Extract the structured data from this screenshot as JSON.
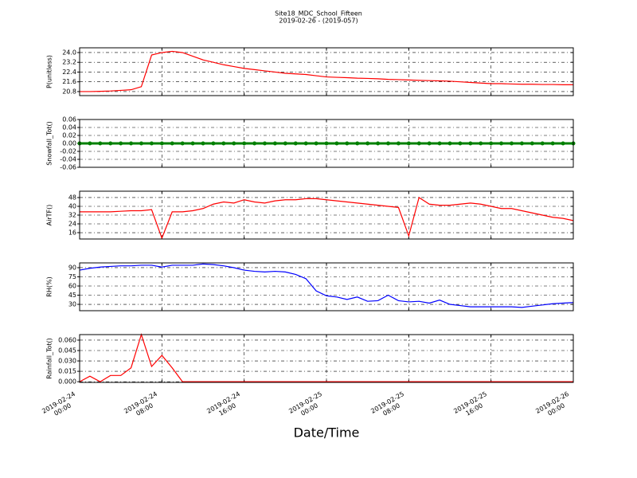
{
  "title": "Site18_MDC_School_Fifteen",
  "subtitle": "2019-02-26 - (2019-057)",
  "chart_data": [
    {
      "type": "line",
      "ylabel": "P(unitless)",
      "grid": true,
      "color": "#ff0000",
      "xlim": [
        "2019-02-24 00:00",
        "2019-02-26 00:00"
      ],
      "ylim": [
        20.47,
        24.39
      ],
      "yticks": [
        {
          "value": 20.8,
          "label": "20.8"
        },
        21.6,
        22.4,
        23.2,
        {
          "value": 24,
          "label": "24.0"
        }
      ],
      "x": [
        "2019-02-24 00:00",
        "2019-02-24 01:00",
        "2019-02-24 02:00",
        "2019-02-24 03:00",
        "2019-02-24 04:00",
        "2019-02-24 05:00",
        "2019-02-24 06:00",
        "2019-02-24 07:00",
        "2019-02-24 08:00",
        "2019-02-24 09:00",
        "2019-02-24 10:00",
        "2019-02-24 11:00",
        "2019-02-24 12:00",
        "2019-02-24 13:00",
        "2019-02-24 14:00",
        "2019-02-24 15:00",
        "2019-02-24 16:00",
        "2019-02-24 17:00",
        "2019-02-24 18:00",
        "2019-02-24 19:00",
        "2019-02-24 20:00",
        "2019-02-24 21:00",
        "2019-02-24 22:00",
        "2019-02-24 23:00",
        "2019-02-25 00:00",
        "2019-02-25 01:00",
        "2019-02-25 02:00",
        "2019-02-25 03:00",
        "2019-02-25 04:00",
        "2019-02-25 05:00",
        "2019-02-25 06:00",
        "2019-02-25 07:00",
        "2019-02-25 08:00",
        "2019-02-25 09:00",
        "2019-02-25 10:00",
        "2019-02-25 11:00",
        "2019-02-25 12:00",
        "2019-02-25 13:00",
        "2019-02-25 14:00",
        "2019-02-25 15:00",
        "2019-02-25 16:00",
        "2019-02-25 17:00",
        "2019-02-25 18:00",
        "2019-02-25 19:00",
        "2019-02-25 20:00",
        "2019-02-25 21:00",
        "2019-02-25 22:00",
        "2019-02-25 23:00",
        "2019-02-26 00:00"
      ],
      "values": [
        20.8,
        20.8,
        20.82,
        20.85,
        20.9,
        20.95,
        21.2,
        23.8,
        24.0,
        24.1,
        24.0,
        23.7,
        23.4,
        23.2,
        23.0,
        22.85,
        22.7,
        22.6,
        22.5,
        22.4,
        22.3,
        22.25,
        22.2,
        22.1,
        22.0,
        21.97,
        21.94,
        21.9,
        21.88,
        21.85,
        21.8,
        21.78,
        21.75,
        21.72,
        21.7,
        21.68,
        21.65,
        21.6,
        21.55,
        21.5,
        21.45,
        21.45,
        21.42,
        21.4,
        21.4,
        21.38,
        21.38,
        21.36,
        21.36
      ]
    },
    {
      "type": "line",
      "ylabel": "Snowfall_Tot()",
      "grid": true,
      "color": "#008000",
      "marker": true,
      "xlim": [
        "2019-02-24 00:00",
        "2019-02-26 00:00"
      ],
      "ylim": [
        -0.06,
        0.06
      ],
      "yticks": [
        -0.06,
        -0.04,
        -0.02,
        {
          "value": 0,
          "label": "0.00"
        },
        0.02,
        0.04,
        0.06
      ],
      "x": [
        "2019-02-24 00:00",
        "2019-02-24 01:00",
        "2019-02-24 02:00",
        "2019-02-24 03:00",
        "2019-02-24 04:00",
        "2019-02-24 05:00",
        "2019-02-24 06:00",
        "2019-02-24 07:00",
        "2019-02-24 08:00",
        "2019-02-24 09:00",
        "2019-02-24 10:00",
        "2019-02-24 11:00",
        "2019-02-24 12:00",
        "2019-02-24 13:00",
        "2019-02-24 14:00",
        "2019-02-24 15:00",
        "2019-02-24 16:00",
        "2019-02-24 17:00",
        "2019-02-24 18:00",
        "2019-02-24 19:00",
        "2019-02-24 20:00",
        "2019-02-24 21:00",
        "2019-02-24 22:00",
        "2019-02-24 23:00",
        "2019-02-25 00:00",
        "2019-02-25 01:00",
        "2019-02-25 02:00",
        "2019-02-25 03:00",
        "2019-02-25 04:00",
        "2019-02-25 05:00",
        "2019-02-25 06:00",
        "2019-02-25 07:00",
        "2019-02-25 08:00",
        "2019-02-25 09:00",
        "2019-02-25 10:00",
        "2019-02-25 11:00",
        "2019-02-25 12:00",
        "2019-02-25 13:00",
        "2019-02-25 14:00",
        "2019-02-25 15:00",
        "2019-02-25 16:00",
        "2019-02-25 17:00",
        "2019-02-25 18:00",
        "2019-02-25 19:00",
        "2019-02-25 20:00",
        "2019-02-25 21:00",
        "2019-02-25 22:00",
        "2019-02-25 23:00",
        "2019-02-26 00:00"
      ],
      "values": [
        0,
        0,
        0,
        0,
        0,
        0,
        0,
        0,
        0,
        0,
        0,
        0,
        0,
        0,
        0,
        0,
        0,
        0,
        0,
        0,
        0,
        0,
        0,
        0,
        0,
        0,
        0,
        0,
        0,
        0,
        0,
        0,
        0,
        0,
        0,
        0,
        0,
        0,
        0,
        0,
        0,
        0,
        0,
        0,
        0,
        0,
        0,
        0,
        0
      ]
    },
    {
      "type": "line",
      "ylabel": "AirTF()",
      "grid": true,
      "color": "#ff0000",
      "xlim": [
        "2019-02-24 00:00",
        "2019-02-26 00:00"
      ],
      "ylim": [
        10.2,
        53.8
      ],
      "yticks": [
        16,
        24,
        32,
        40,
        48
      ],
      "x": [
        "2019-02-24 00:00",
        "2019-02-24 01:00",
        "2019-02-24 02:00",
        "2019-02-24 03:00",
        "2019-02-24 04:00",
        "2019-02-24 05:00",
        "2019-02-24 06:00",
        "2019-02-24 07:00",
        "2019-02-24 08:00",
        "2019-02-24 09:00",
        "2019-02-24 10:00",
        "2019-02-24 11:00",
        "2019-02-24 12:00",
        "2019-02-24 13:00",
        "2019-02-24 14:00",
        "2019-02-24 15:00",
        "2019-02-24 16:00",
        "2019-02-24 17:00",
        "2019-02-24 18:00",
        "2019-02-24 19:00",
        "2019-02-24 20:00",
        "2019-02-24 21:00",
        "2019-02-24 22:00",
        "2019-02-24 23:00",
        "2019-02-25 00:00",
        "2019-02-25 01:00",
        "2019-02-25 02:00",
        "2019-02-25 03:00",
        "2019-02-25 04:00",
        "2019-02-25 05:00",
        "2019-02-25 06:00",
        "2019-02-25 07:00",
        "2019-02-25 08:00",
        "2019-02-25 09:00",
        "2019-02-25 10:00",
        "2019-02-25 11:00",
        "2019-02-25 12:00",
        "2019-02-25 13:00",
        "2019-02-25 14:00",
        "2019-02-25 15:00",
        "2019-02-25 16:00",
        "2019-02-25 17:00",
        "2019-02-25 18:00",
        "2019-02-25 19:00",
        "2019-02-25 20:00",
        "2019-02-25 21:00",
        "2019-02-25 22:00",
        "2019-02-25 23:00",
        "2019-02-26 00:00"
      ],
      "values": [
        35,
        35,
        35,
        35,
        35.5,
        36,
        36,
        37,
        11,
        35,
        35,
        36,
        38,
        42,
        44,
        43,
        46,
        44,
        43,
        45,
        46,
        46,
        47,
        47,
        46,
        45,
        44,
        43,
        42,
        41,
        40,
        39,
        13,
        48,
        42,
        41,
        41,
        42,
        43,
        42,
        40,
        38,
        38,
        36,
        34,
        32,
        30,
        29,
        27
      ]
    },
    {
      "type": "line",
      "ylabel": "RH(%)",
      "grid": true,
      "color": "#0000ff",
      "xlim": [
        "2019-02-24 00:00",
        "2019-02-26 00:00"
      ],
      "ylim": [
        19.6,
        97.8
      ],
      "yticks": [
        30,
        45,
        60,
        75,
        90
      ],
      "x": [
        "2019-02-24 00:00",
        "2019-02-24 01:00",
        "2019-02-24 02:00",
        "2019-02-24 03:00",
        "2019-02-24 04:00",
        "2019-02-24 05:00",
        "2019-02-24 06:00",
        "2019-02-24 07:00",
        "2019-02-24 08:00",
        "2019-02-24 09:00",
        "2019-02-24 10:00",
        "2019-02-24 11:00",
        "2019-02-24 12:00",
        "2019-02-24 13:00",
        "2019-02-24 14:00",
        "2019-02-24 15:00",
        "2019-02-24 16:00",
        "2019-02-24 17:00",
        "2019-02-24 18:00",
        "2019-02-24 19:00",
        "2019-02-24 20:00",
        "2019-02-24 21:00",
        "2019-02-24 22:00",
        "2019-02-24 23:00",
        "2019-02-25 00:00",
        "2019-02-25 01:00",
        "2019-02-25 02:00",
        "2019-02-25 03:00",
        "2019-02-25 04:00",
        "2019-02-25 05:00",
        "2019-02-25 06:00",
        "2019-02-25 07:00",
        "2019-02-25 08:00",
        "2019-02-25 09:00",
        "2019-02-25 10:00",
        "2019-02-25 11:00",
        "2019-02-25 12:00",
        "2019-02-25 13:00",
        "2019-02-25 14:00",
        "2019-02-25 15:00",
        "2019-02-25 16:00",
        "2019-02-25 17:00",
        "2019-02-25 18:00",
        "2019-02-25 19:00",
        "2019-02-25 20:00",
        "2019-02-25 21:00",
        "2019-02-25 22:00",
        "2019-02-25 23:00",
        "2019-02-26 00:00"
      ],
      "values": [
        86,
        89,
        91,
        92,
        93,
        93,
        94,
        94,
        91,
        94,
        94,
        94,
        96,
        95,
        93,
        90,
        86,
        84,
        83,
        84,
        83,
        79,
        72,
        52,
        44,
        42,
        38,
        42,
        35,
        36,
        45,
        36,
        34,
        35,
        32,
        37,
        30,
        28,
        26,
        26,
        26,
        26,
        26,
        25,
        27,
        29,
        31,
        32,
        33
      ]
    },
    {
      "type": "line",
      "ylabel": "Rainfall_Tot()",
      "xlabel": "Date/Time",
      "grid": true,
      "color": "#ff0000",
      "xlim": [
        "2019-02-24 00:00",
        "2019-02-26 00:00"
      ],
      "ylim": [
        -0.001,
        0.068
      ],
      "yticks": [
        {
          "value": 0,
          "label": "0.000"
        },
        0.015,
        {
          "value": 0.03,
          "label": "0.030"
        },
        0.045,
        {
          "value": 0.06,
          "label": "0.060"
        }
      ],
      "xticks": [
        "2019-02-24 00:00",
        "2019-02-24 08:00",
        "2019-02-24 16:00",
        "2019-02-25 00:00",
        "2019-02-25 08:00",
        "2019-02-25 16:00",
        "2019-02-26 00:00"
      ],
      "x": [
        "2019-02-24 00:00",
        "2019-02-24 01:00",
        "2019-02-24 02:00",
        "2019-02-24 03:00",
        "2019-02-24 04:00",
        "2019-02-24 05:00",
        "2019-02-24 06:00",
        "2019-02-24 07:00",
        "2019-02-24 08:00",
        "2019-02-24 09:00",
        "2019-02-24 10:00",
        "2019-02-24 11:00",
        "2019-02-24 12:00",
        "2019-02-24 13:00",
        "2019-02-24 14:00",
        "2019-02-24 15:00",
        "2019-02-24 16:00",
        "2019-02-24 17:00",
        "2019-02-24 18:00",
        "2019-02-24 19:00",
        "2019-02-24 20:00",
        "2019-02-24 21:00",
        "2019-02-24 22:00",
        "2019-02-24 23:00",
        "2019-02-25 00:00",
        "2019-02-25 01:00",
        "2019-02-25 02:00",
        "2019-02-25 03:00",
        "2019-02-25 04:00",
        "2019-02-25 05:00",
        "2019-02-25 06:00",
        "2019-02-25 07:00",
        "2019-02-25 08:00",
        "2019-02-25 09:00",
        "2019-02-25 10:00",
        "2019-02-25 11:00",
        "2019-02-25 12:00",
        "2019-02-25 13:00",
        "2019-02-25 14:00",
        "2019-02-25 15:00",
        "2019-02-25 16:00",
        "2019-02-25 17:00",
        "2019-02-25 18:00",
        "2019-02-25 19:00",
        "2019-02-25 20:00",
        "2019-02-25 21:00",
        "2019-02-25 22:00",
        "2019-02-25 23:00",
        "2019-02-26 00:00"
      ],
      "values": [
        0,
        0.008,
        0,
        0.009,
        0.009,
        0.02,
        0.068,
        0.022,
        0.038,
        0.02,
        0,
        0,
        0,
        0,
        0,
        0,
        0,
        0,
        0,
        0,
        0,
        0,
        0,
        0,
        0,
        0,
        0,
        0,
        0,
        0,
        0,
        0,
        0,
        0,
        0,
        0,
        0,
        0,
        0,
        0,
        0,
        0,
        0,
        0,
        0,
        0,
        0,
        0,
        0
      ]
    }
  ]
}
